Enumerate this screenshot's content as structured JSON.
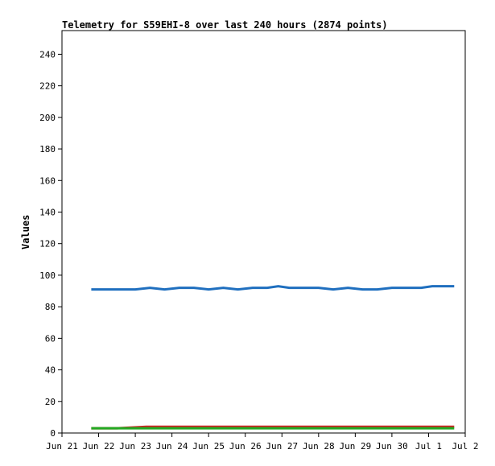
{
  "chart_data": {
    "type": "line",
    "title": "Telemetry for S59EHI-8 over last 240 hours (2874 points)",
    "xlabel": "",
    "ylabel": "Values",
    "ylim": [
      0,
      255
    ],
    "xlim_days": [
      0,
      11
    ],
    "y_ticks": [
      0,
      20,
      40,
      60,
      80,
      100,
      120,
      140,
      160,
      180,
      200,
      220,
      240
    ],
    "x_ticks": [
      {
        "label": "Jun 21",
        "day": 0
      },
      {
        "label": "Jun 22",
        "day": 1
      },
      {
        "label": "Jun 23",
        "day": 2
      },
      {
        "label": "Jun 24",
        "day": 3
      },
      {
        "label": "Jun 25",
        "day": 4
      },
      {
        "label": "Jun 26",
        "day": 5
      },
      {
        "label": "Jun 27",
        "day": 6
      },
      {
        "label": "Jun 28",
        "day": 7
      },
      {
        "label": "Jun 29",
        "day": 8
      },
      {
        "label": "Jun 30",
        "day": 9
      },
      {
        "label": "Jul 1",
        "day": 10
      },
      {
        "label": "Jul 2",
        "day": 11
      }
    ],
    "grid": false,
    "legend": "none",
    "series": [
      {
        "color": "#1f6fbf",
        "points": [
          {
            "day": 0.8,
            "value": 91
          },
          {
            "day": 1.2,
            "value": 91
          },
          {
            "day": 1.6,
            "value": 91
          },
          {
            "day": 2.0,
            "value": 91
          },
          {
            "day": 2.4,
            "value": 92
          },
          {
            "day": 2.8,
            "value": 91
          },
          {
            "day": 3.2,
            "value": 92
          },
          {
            "day": 3.6,
            "value": 92
          },
          {
            "day": 4.0,
            "value": 91
          },
          {
            "day": 4.4,
            "value": 92
          },
          {
            "day": 4.8,
            "value": 91
          },
          {
            "day": 5.2,
            "value": 92
          },
          {
            "day": 5.6,
            "value": 92
          },
          {
            "day": 5.9,
            "value": 93
          },
          {
            "day": 6.2,
            "value": 92
          },
          {
            "day": 6.6,
            "value": 92
          },
          {
            "day": 7.0,
            "value": 92
          },
          {
            "day": 7.4,
            "value": 91
          },
          {
            "day": 7.8,
            "value": 92
          },
          {
            "day": 8.2,
            "value": 91
          },
          {
            "day": 8.6,
            "value": 91
          },
          {
            "day": 9.0,
            "value": 92
          },
          {
            "day": 9.4,
            "value": 92
          },
          {
            "day": 9.8,
            "value": 92
          },
          {
            "day": 10.1,
            "value": 93
          },
          {
            "day": 10.4,
            "value": 93
          },
          {
            "day": 10.7,
            "value": 93
          }
        ]
      },
      {
        "color": "#cc2222",
        "points": [
          {
            "day": 0.8,
            "value": 3
          },
          {
            "day": 1.5,
            "value": 3
          },
          {
            "day": 2.3,
            "value": 4
          },
          {
            "day": 3.0,
            "value": 4
          },
          {
            "day": 4.0,
            "value": 4
          },
          {
            "day": 5.0,
            "value": 4
          },
          {
            "day": 5.7,
            "value": 4
          },
          {
            "day": 6.0,
            "value": 4
          },
          {
            "day": 7.0,
            "value": 4
          },
          {
            "day": 8.0,
            "value": 4
          },
          {
            "day": 9.0,
            "value": 4
          },
          {
            "day": 10.0,
            "value": 4
          },
          {
            "day": 10.7,
            "value": 4
          }
        ]
      },
      {
        "color": "#22aa22",
        "points": [
          {
            "day": 0.8,
            "value": 3
          },
          {
            "day": 3.0,
            "value": 3
          },
          {
            "day": 6.0,
            "value": 3
          },
          {
            "day": 9.0,
            "value": 3
          },
          {
            "day": 10.7,
            "value": 3
          }
        ]
      }
    ]
  }
}
